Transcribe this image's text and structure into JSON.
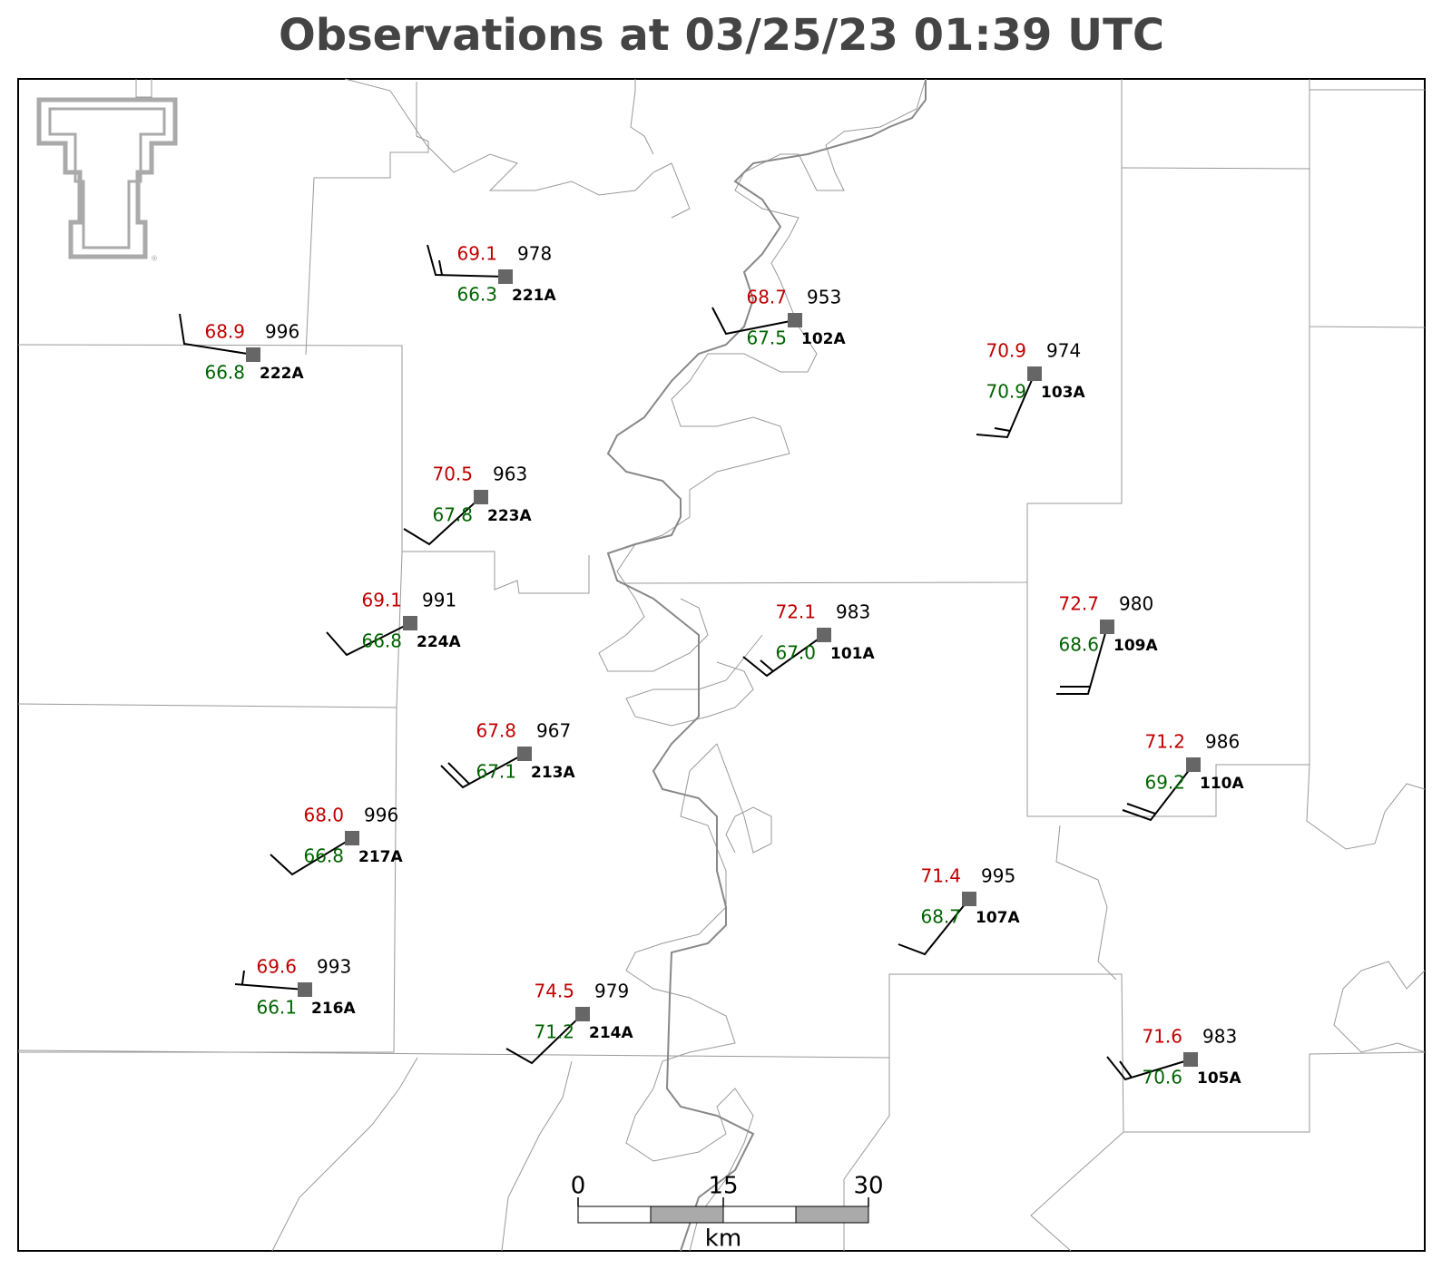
{
  "title": "Observations at 03/25/23 01:39 UTC",
  "stations": [
    {
      "id": "222A",
      "temperature": 68.9,
      "dewpoint": 66.8,
      "pressure": 996
    },
    {
      "id": "221A",
      "temperature": 69.1,
      "dewpoint": 66.3,
      "pressure": 978
    },
    {
      "id": "102A",
      "temperature": 68.7,
      "dewpoint": 67.5,
      "pressure": 953
    },
    {
      "id": "103A",
      "temperature": 70.9,
      "dewpoint": 70.9,
      "pressure": 974
    },
    {
      "id": "223A",
      "temperature": 70.5,
      "dewpoint": 67.8,
      "pressure": 963
    },
    {
      "id": "224A",
      "temperature": 69.1,
      "dewpoint": 66.8,
      "pressure": 991
    },
    {
      "id": "101A",
      "temperature": 72.1,
      "dewpoint": 67.0,
      "pressure": 983
    },
    {
      "id": "109A",
      "temperature": 72.7,
      "dewpoint": 68.6,
      "pressure": 980
    },
    {
      "id": "213A",
      "temperature": 67.8,
      "dewpoint": 67.1,
      "pressure": 967
    },
    {
      "id": "110A",
      "temperature": 71.2,
      "dewpoint": 69.2,
      "pressure": 986
    },
    {
      "id": "217A",
      "temperature": 68.0,
      "dewpoint": 66.8,
      "pressure": 996
    },
    {
      "id": "107A",
      "temperature": 71.4,
      "dewpoint": 68.7,
      "pressure": 995
    },
    {
      "id": "216A",
      "temperature": 69.6,
      "dewpoint": 66.1,
      "pressure": 993
    },
    {
      "id": "214A",
      "temperature": 74.5,
      "dewpoint": 71.2,
      "pressure": 979
    },
    {
      "id": "105A",
      "temperature": 71.6,
      "dewpoint": 70.6,
      "pressure": 983
    }
  ],
  "scale_bar": {
    "ticks": [
      0,
      15,
      30
    ],
    "unit": "km"
  }
}
